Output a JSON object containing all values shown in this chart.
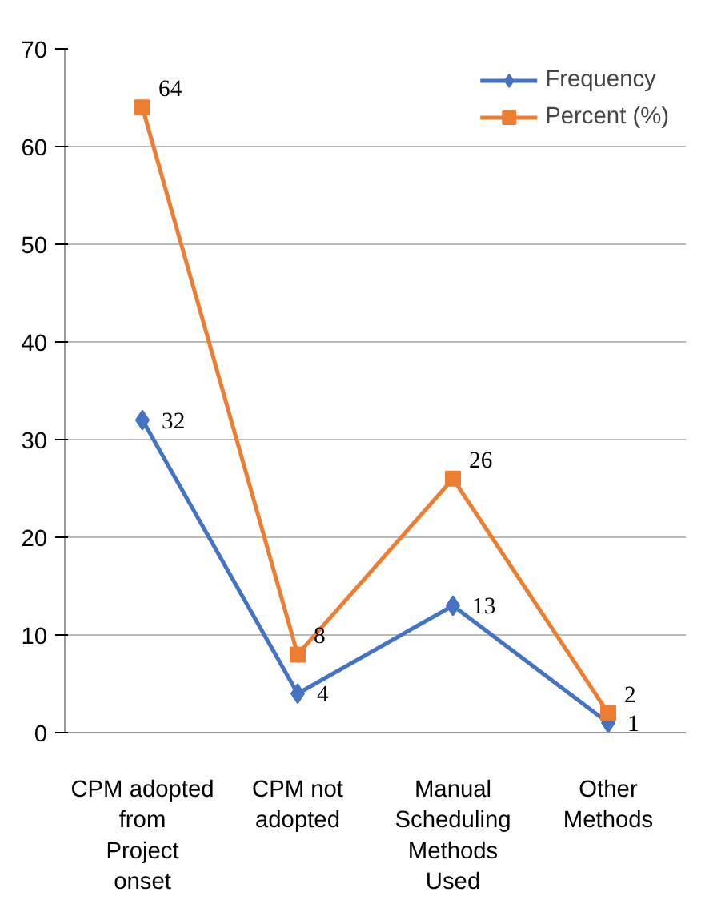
{
  "chart_data": {
    "type": "line",
    "categories": [
      "CPM adopted from Project onset",
      "CPM not adopted",
      "Manual Scheduling Methods Used",
      "Other Methods"
    ],
    "series": [
      {
        "name": "Frequency",
        "color": "#4472c4",
        "marker": "diamond",
        "values": [
          32,
          4,
          13,
          1
        ]
      },
      {
        "name": "Percent (%)",
        "color": "#ed7d31",
        "marker": "square",
        "values": [
          64,
          8,
          26,
          2
        ]
      }
    ],
    "ylim": [
      0,
      70
    ],
    "yticks": [
      0,
      10,
      20,
      30,
      40,
      50,
      60,
      70
    ],
    "grid": "y",
    "legend": "top right",
    "data_labels": true
  }
}
